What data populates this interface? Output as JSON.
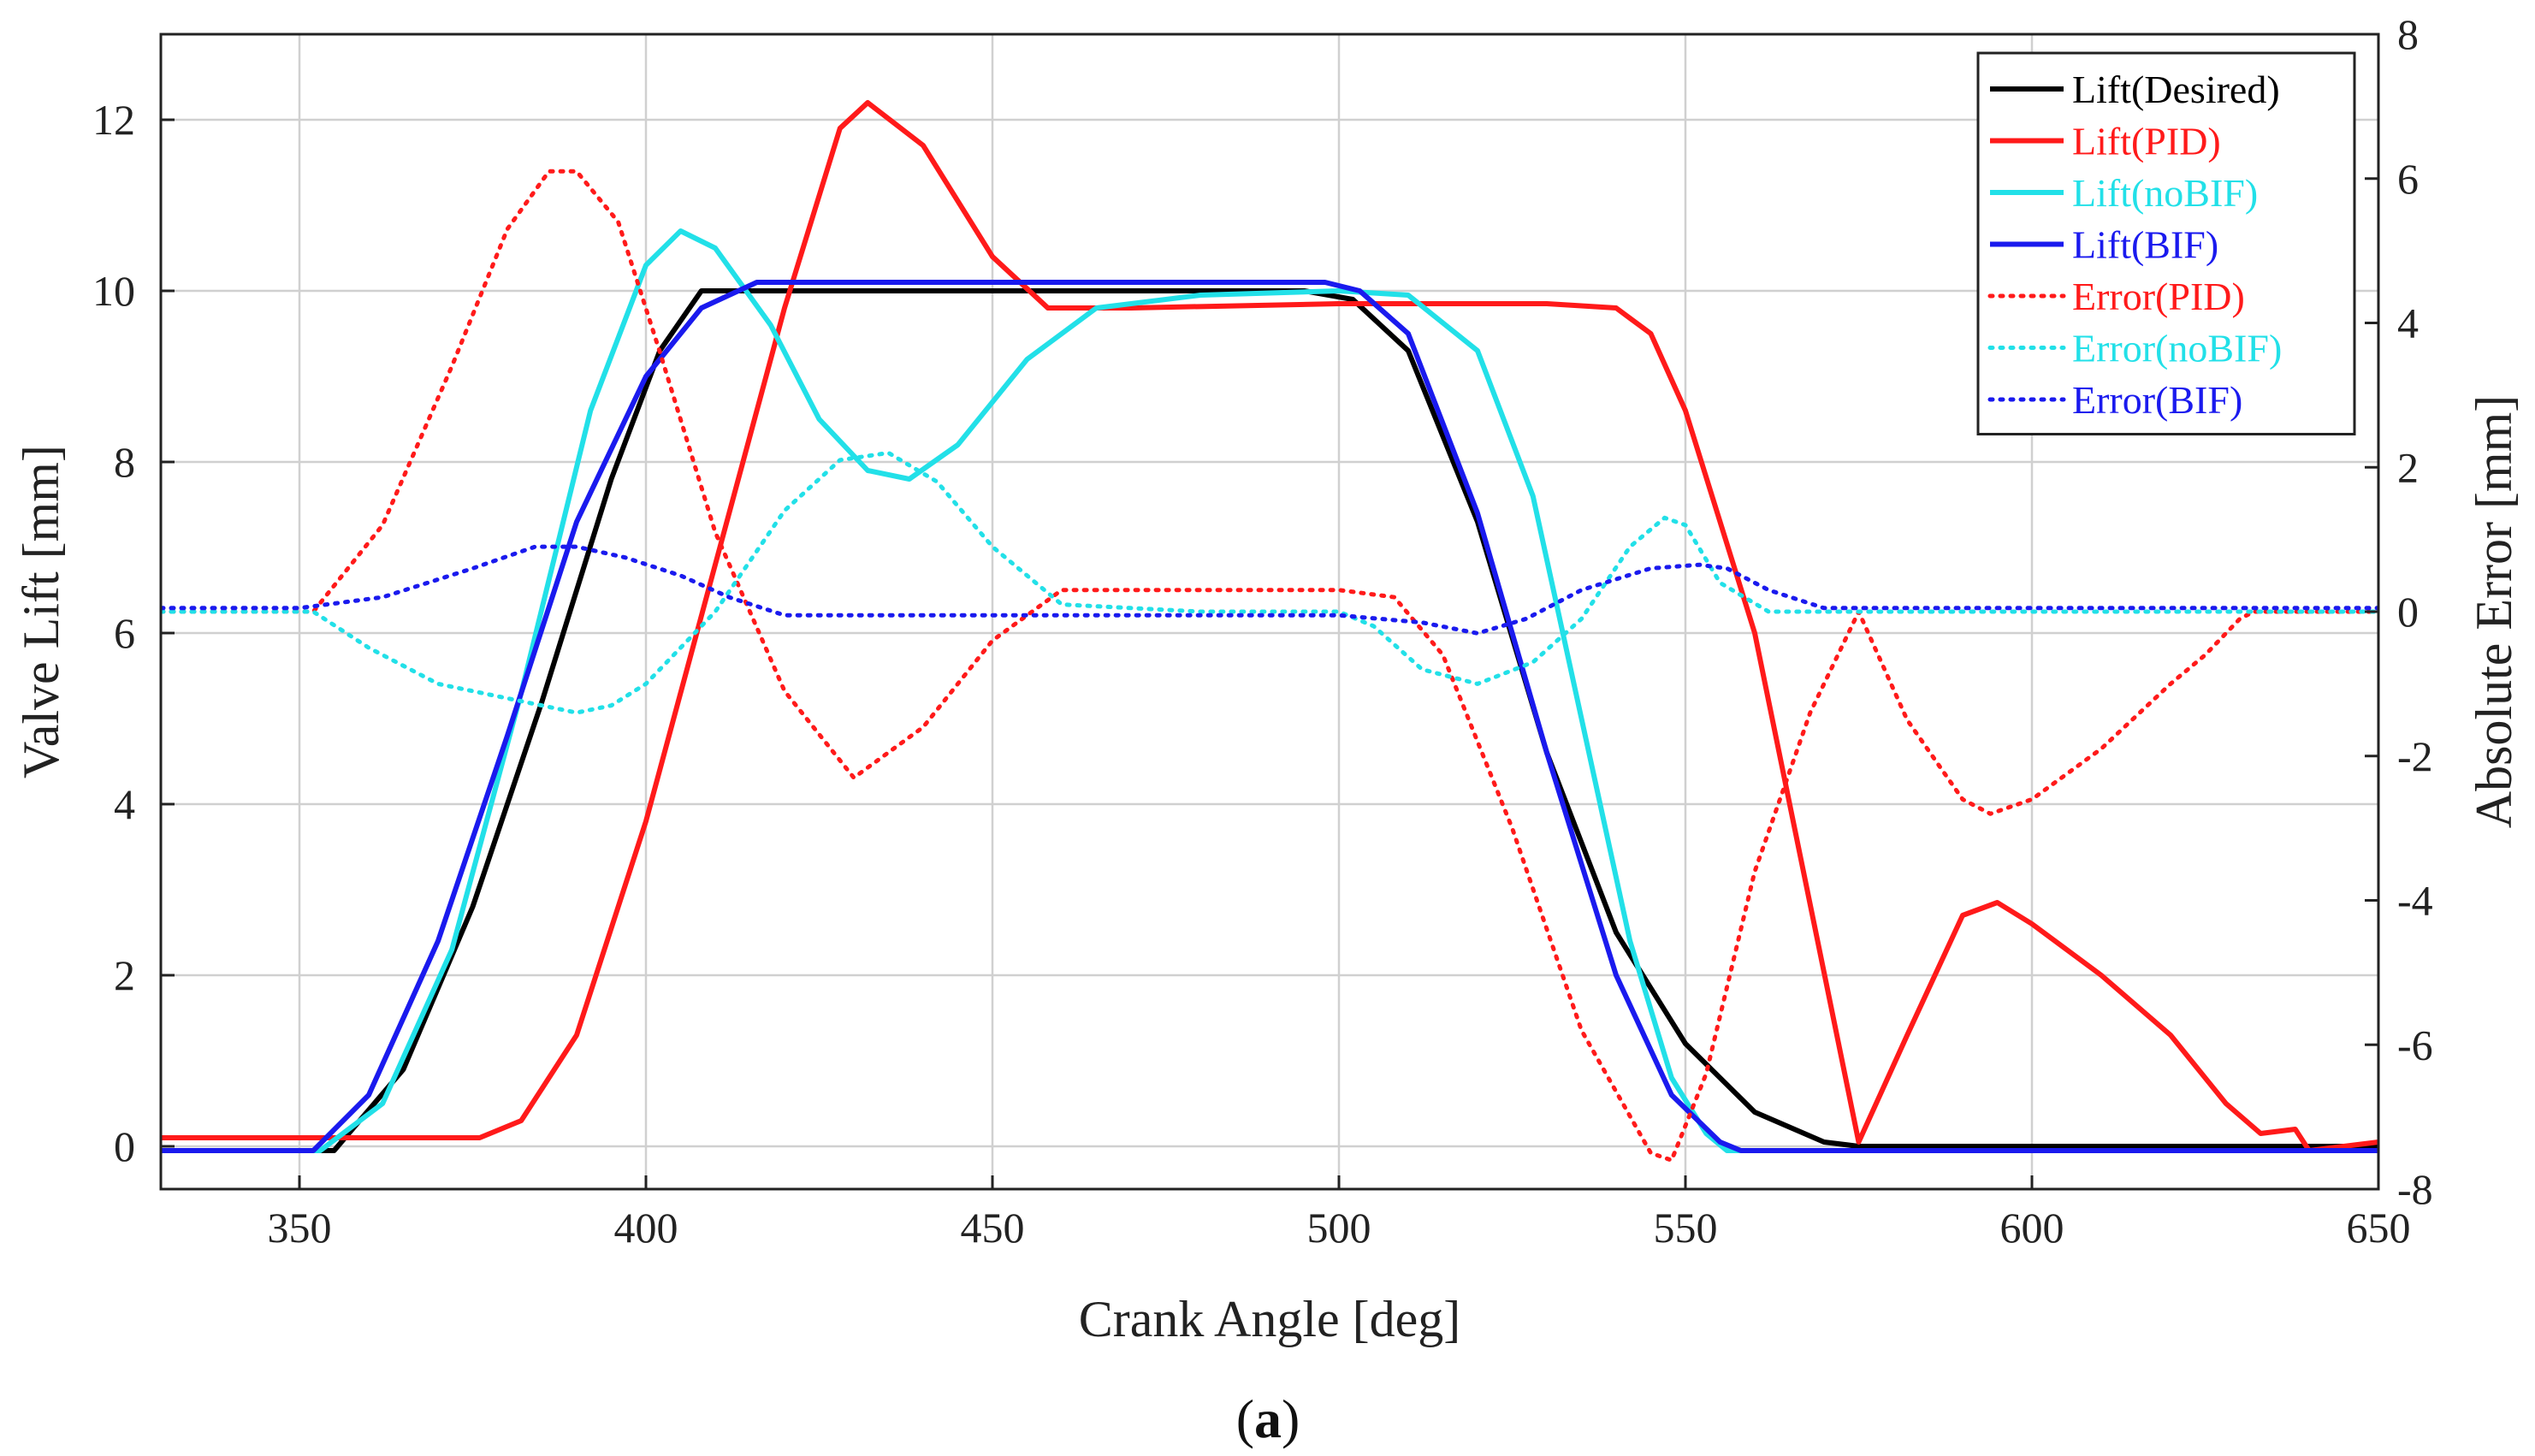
{
  "caption": {
    "open": "(",
    "letter": "a",
    "close": ")"
  },
  "chart_data": {
    "type": "line",
    "xlabel": "Crank Angle [deg]",
    "ylabel": "Valve Lift [mm]",
    "y2label": "Absolute Error [mm]",
    "xlim": [
      330,
      650
    ],
    "ylim": [
      -0.5,
      13
    ],
    "y2lim": [
      -8,
      8
    ],
    "xticks": [
      350,
      400,
      450,
      500,
      550,
      600,
      650
    ],
    "yticks": [
      0,
      2,
      4,
      6,
      8,
      10,
      12
    ],
    "y2ticks": [
      -8,
      -6,
      -4,
      -2,
      0,
      2,
      4,
      6,
      8
    ],
    "grid": true,
    "legend_position": "top-right",
    "series": [
      {
        "name": "Lift(Desired)",
        "axis": "left",
        "color": "#000000",
        "style": "solid",
        "x": [
          330,
          355,
          365,
          375,
          385,
          395,
          402,
          408,
          420,
          450,
          480,
          495,
          502,
          510,
          520,
          530,
          540,
          550,
          560,
          570,
          575,
          650
        ],
        "y": [
          -0.05,
          -0.05,
          0.9,
          2.8,
          5.2,
          7.8,
          9.3,
          10.0,
          10.0,
          10.0,
          10.0,
          10.0,
          9.9,
          9.3,
          7.3,
          4.6,
          2.5,
          1.2,
          0.4,
          0.05,
          0.0,
          0.0
        ]
      },
      {
        "name": "Lift(PID)",
        "axis": "left",
        "color": "#ff1a1a",
        "style": "solid",
        "x": [
          330,
          370,
          376,
          382,
          390,
          400,
          410,
          420,
          428,
          432,
          440,
          450,
          458,
          470,
          500,
          520,
          530,
          540,
          545,
          550,
          560,
          575,
          582,
          590,
          595,
          600,
          610,
          620,
          628,
          633,
          638,
          640,
          650
        ],
        "y": [
          0.1,
          0.1,
          0.1,
          0.3,
          1.3,
          3.8,
          6.8,
          9.8,
          11.9,
          12.2,
          11.7,
          10.4,
          9.8,
          9.8,
          9.85,
          9.85,
          9.85,
          9.8,
          9.5,
          8.6,
          6.0,
          0.05,
          1.3,
          2.7,
          2.85,
          2.6,
          2.0,
          1.3,
          0.5,
          0.15,
          0.2,
          -0.05,
          0.05
        ]
      },
      {
        "name": "Lift(noBIF)",
        "axis": "left",
        "color": "#22e0e8",
        "style": "solid",
        "x": [
          330,
          353,
          362,
          372,
          382,
          392,
          400,
          405,
          410,
          418,
          425,
          432,
          438,
          445,
          455,
          465,
          480,
          500,
          510,
          520,
          528,
          535,
          542,
          548,
          553,
          556,
          558,
          650
        ],
        "y": [
          -0.05,
          -0.05,
          0.5,
          2.3,
          5.3,
          8.6,
          10.3,
          10.7,
          10.5,
          9.6,
          8.5,
          7.9,
          7.8,
          8.2,
          9.2,
          9.8,
          9.95,
          10.0,
          9.95,
          9.3,
          7.6,
          5.0,
          2.4,
          0.8,
          0.15,
          -0.05,
          -0.05,
          -0.05
        ]
      },
      {
        "name": "Lift(BIF)",
        "axis": "left",
        "color": "#1a1aee",
        "style": "solid",
        "x": [
          330,
          352,
          360,
          370,
          380,
          390,
          400,
          408,
          416,
          430,
          480,
          498,
          503,
          510,
          520,
          530,
          540,
          548,
          555,
          558,
          650
        ],
        "y": [
          -0.05,
          -0.05,
          0.6,
          2.4,
          4.8,
          7.3,
          9.0,
          9.8,
          10.1,
          10.1,
          10.1,
          10.1,
          10.0,
          9.5,
          7.4,
          4.6,
          2.0,
          0.6,
          0.05,
          -0.05,
          -0.05
        ]
      },
      {
        "name": "Error(PID)",
        "axis": "right",
        "color": "#ff1a1a",
        "style": "dotted",
        "x": [
          330,
          352,
          362,
          372,
          380,
          386,
          390,
          396,
          402,
          410,
          420,
          430,
          440,
          450,
          460,
          500,
          508,
          515,
          525,
          535,
          545,
          548,
          553,
          560,
          568,
          575,
          582,
          590,
          594,
          600,
          610,
          620,
          625,
          630,
          632,
          650
        ],
        "y": [
          0,
          0,
          1.2,
          3.4,
          5.3,
          6.1,
          6.1,
          5.4,
          3.6,
          1.1,
          -1.1,
          -2.3,
          -1.6,
          -0.4,
          0.3,
          0.3,
          0.2,
          -0.6,
          -3.0,
          -5.8,
          -7.5,
          -7.6,
          -6.4,
          -3.6,
          -1.4,
          0,
          -1.5,
          -2.6,
          -2.8,
          -2.6,
          -1.9,
          -1.0,
          -0.6,
          -0.1,
          0,
          0
        ]
      },
      {
        "name": "Error(noBIF)",
        "axis": "right",
        "color": "#22e0e8",
        "style": "dotted",
        "x": [
          330,
          352,
          360,
          370,
          380,
          390,
          395,
          400,
          410,
          420,
          428,
          435,
          442,
          450,
          460,
          480,
          500,
          505,
          512,
          520,
          528,
          535,
          542,
          547,
          550,
          555,
          562,
          570,
          650
        ],
        "y": [
          0,
          0,
          -0.5,
          -1.0,
          -1.2,
          -1.4,
          -1.3,
          -1.0,
          0.0,
          1.4,
          2.1,
          2.2,
          1.8,
          0.9,
          0.1,
          0,
          0,
          -0.2,
          -0.8,
          -1.0,
          -0.7,
          -0.1,
          0.9,
          1.3,
          1.2,
          0.4,
          0,
          0,
          0
        ]
      },
      {
        "name": "Error(BIF)",
        "axis": "right",
        "color": "#1a1aee",
        "style": "dotted",
        "x": [
          330,
          350,
          362,
          375,
          384,
          390,
          397,
          405,
          412,
          420,
          440,
          480,
          500,
          512,
          520,
          527,
          535,
          545,
          552,
          556,
          562,
          570,
          650
        ],
        "y": [
          0.05,
          0.05,
          0.2,
          0.6,
          0.9,
          0.9,
          0.75,
          0.5,
          0.2,
          -0.05,
          -0.05,
          -0.05,
          -0.05,
          -0.15,
          -0.3,
          -0.1,
          0.3,
          0.6,
          0.65,
          0.6,
          0.3,
          0.05,
          0.05
        ]
      }
    ]
  }
}
